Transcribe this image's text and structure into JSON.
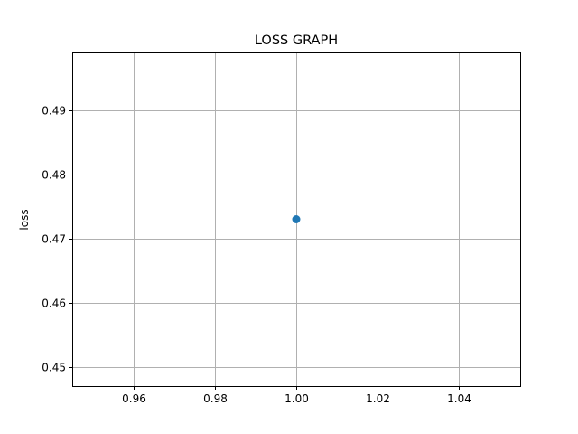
{
  "chart_data": {
    "type": "scatter",
    "title": "LOSS GRAPH",
    "xlabel": "",
    "ylabel": "loss",
    "xlim": [
      0.945,
      1.055
    ],
    "ylim": [
      0.447,
      0.499
    ],
    "xticks": [
      0.96,
      0.98,
      1.0,
      1.02,
      1.04
    ],
    "xtick_labels": [
      "0.96",
      "0.98",
      "1.00",
      "1.02",
      "1.04"
    ],
    "yticks": [
      0.45,
      0.46,
      0.47,
      0.48,
      0.49
    ],
    "ytick_labels": [
      "0.45",
      "0.46",
      "0.47",
      "0.48",
      "0.49"
    ],
    "grid": true,
    "series": [
      {
        "x": [
          1.0
        ],
        "y": [
          0.473
        ],
        "color": "#1f77b4"
      }
    ]
  }
}
